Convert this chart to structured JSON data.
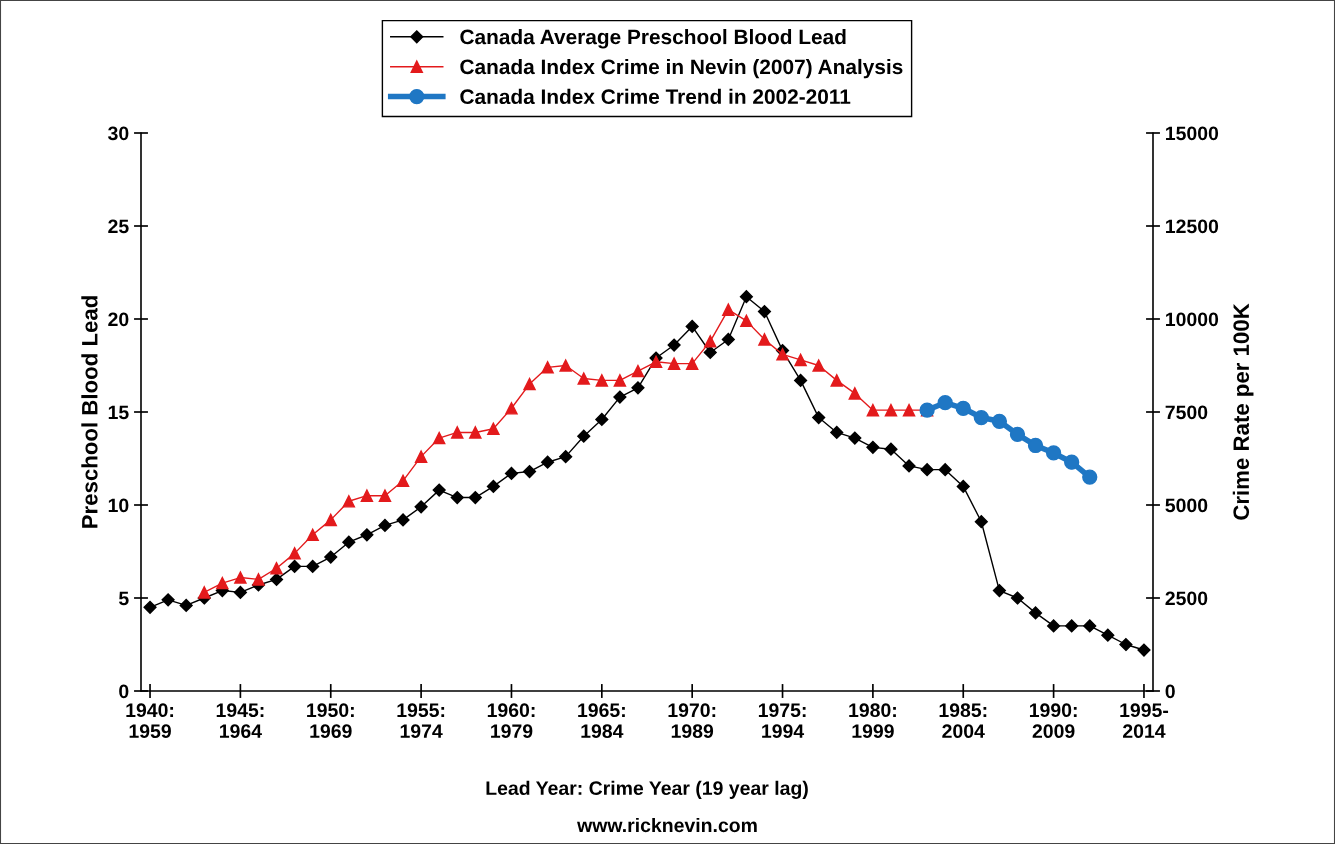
{
  "chart_data": {
    "type": "line",
    "xlabel": "Lead Year: Crime Year (19 year lag)",
    "ylabel": "Preschool Blood Lead",
    "y2label": "Crime Rate per 100K",
    "annotations": [
      "www.ricknevin.com"
    ],
    "categories": [
      "1940:\n1959",
      null,
      null,
      null,
      null,
      "1945:\n1964",
      null,
      null,
      null,
      null,
      "1950:\n1969",
      null,
      null,
      null,
      null,
      "1955:\n1974",
      null,
      null,
      null,
      null,
      "1960:\n1979",
      null,
      null,
      null,
      null,
      "1965:\n1984",
      null,
      null,
      null,
      null,
      "1970:\n1989",
      null,
      null,
      null,
      null,
      "1975:\n1994",
      null,
      null,
      null,
      null,
      "1980:\n1999",
      null,
      null,
      null,
      null,
      "1985:\n2004",
      null,
      null,
      null,
      null,
      "1990:\n2009",
      null,
      null,
      null,
      null,
      "1995-\n2014"
    ],
    "ylim": [
      0,
      30
    ],
    "yticks": [
      0,
      5,
      10,
      15,
      20,
      25,
      30
    ],
    "y2lim": [
      0,
      15000
    ],
    "y2ticks": [
      0,
      2500,
      5000,
      7500,
      10000,
      12500,
      15000
    ],
    "grid": false,
    "legend": "top",
    "series": [
      {
        "name": "Canada Average Preschool Blood Lead",
        "color": "#000000",
        "marker": "diamond",
        "axis": "y",
        "values": [
          4.5,
          4.9,
          4.6,
          5.0,
          5.4,
          5.3,
          5.7,
          6.0,
          6.7,
          6.7,
          7.2,
          8.0,
          8.4,
          8.9,
          9.2,
          9.9,
          10.8,
          10.4,
          10.4,
          11.0,
          11.7,
          11.8,
          12.3,
          12.6,
          13.7,
          14.6,
          15.8,
          16.3,
          17.9,
          18.6,
          19.6,
          18.2,
          18.9,
          21.2,
          20.4,
          18.3,
          16.7,
          14.7,
          13.9,
          13.6,
          13.1,
          13.0,
          12.1,
          11.9,
          11.9,
          11.0,
          9.1,
          5.4,
          5.0,
          4.2,
          3.5,
          3.5,
          3.5,
          3.0,
          2.5,
          2.2
        ]
      },
      {
        "name": "Canada Index Crime in Nevin (2007) Analysis",
        "color": "#e31a1c",
        "marker": "triangle",
        "axis": "y2",
        "values": [
          null,
          null,
          null,
          2650,
          2900,
          3050,
          3000,
          3300,
          3700,
          4200,
          4600,
          5100,
          5250,
          5250,
          5650,
          6300,
          6800,
          6950,
          6950,
          7050,
          7600,
          8250,
          8700,
          8750,
          8400,
          8350,
          8350,
          8600,
          8850,
          8800,
          8800,
          9400,
          10250,
          9950,
          9450,
          9050,
          8900,
          8750,
          8350,
          8000,
          7550,
          7550,
          7550,
          7550,
          null,
          null,
          null,
          null,
          null,
          null,
          null,
          null,
          null,
          null,
          null,
          null
        ]
      },
      {
        "name": "Canada Index Crime Trend in 2002-2011",
        "color": "#1f77c4",
        "marker": "circle",
        "axis": "y2",
        "values": [
          null,
          null,
          null,
          null,
          null,
          null,
          null,
          null,
          null,
          null,
          null,
          null,
          null,
          null,
          null,
          null,
          null,
          null,
          null,
          null,
          null,
          null,
          null,
          null,
          null,
          null,
          null,
          null,
          null,
          null,
          null,
          null,
          null,
          null,
          null,
          null,
          null,
          null,
          null,
          null,
          null,
          null,
          null,
          7550,
          7750,
          7600,
          7350,
          7250,
          6900,
          6600,
          6400,
          6150,
          5750,
          null,
          null,
          null
        ]
      }
    ]
  }
}
